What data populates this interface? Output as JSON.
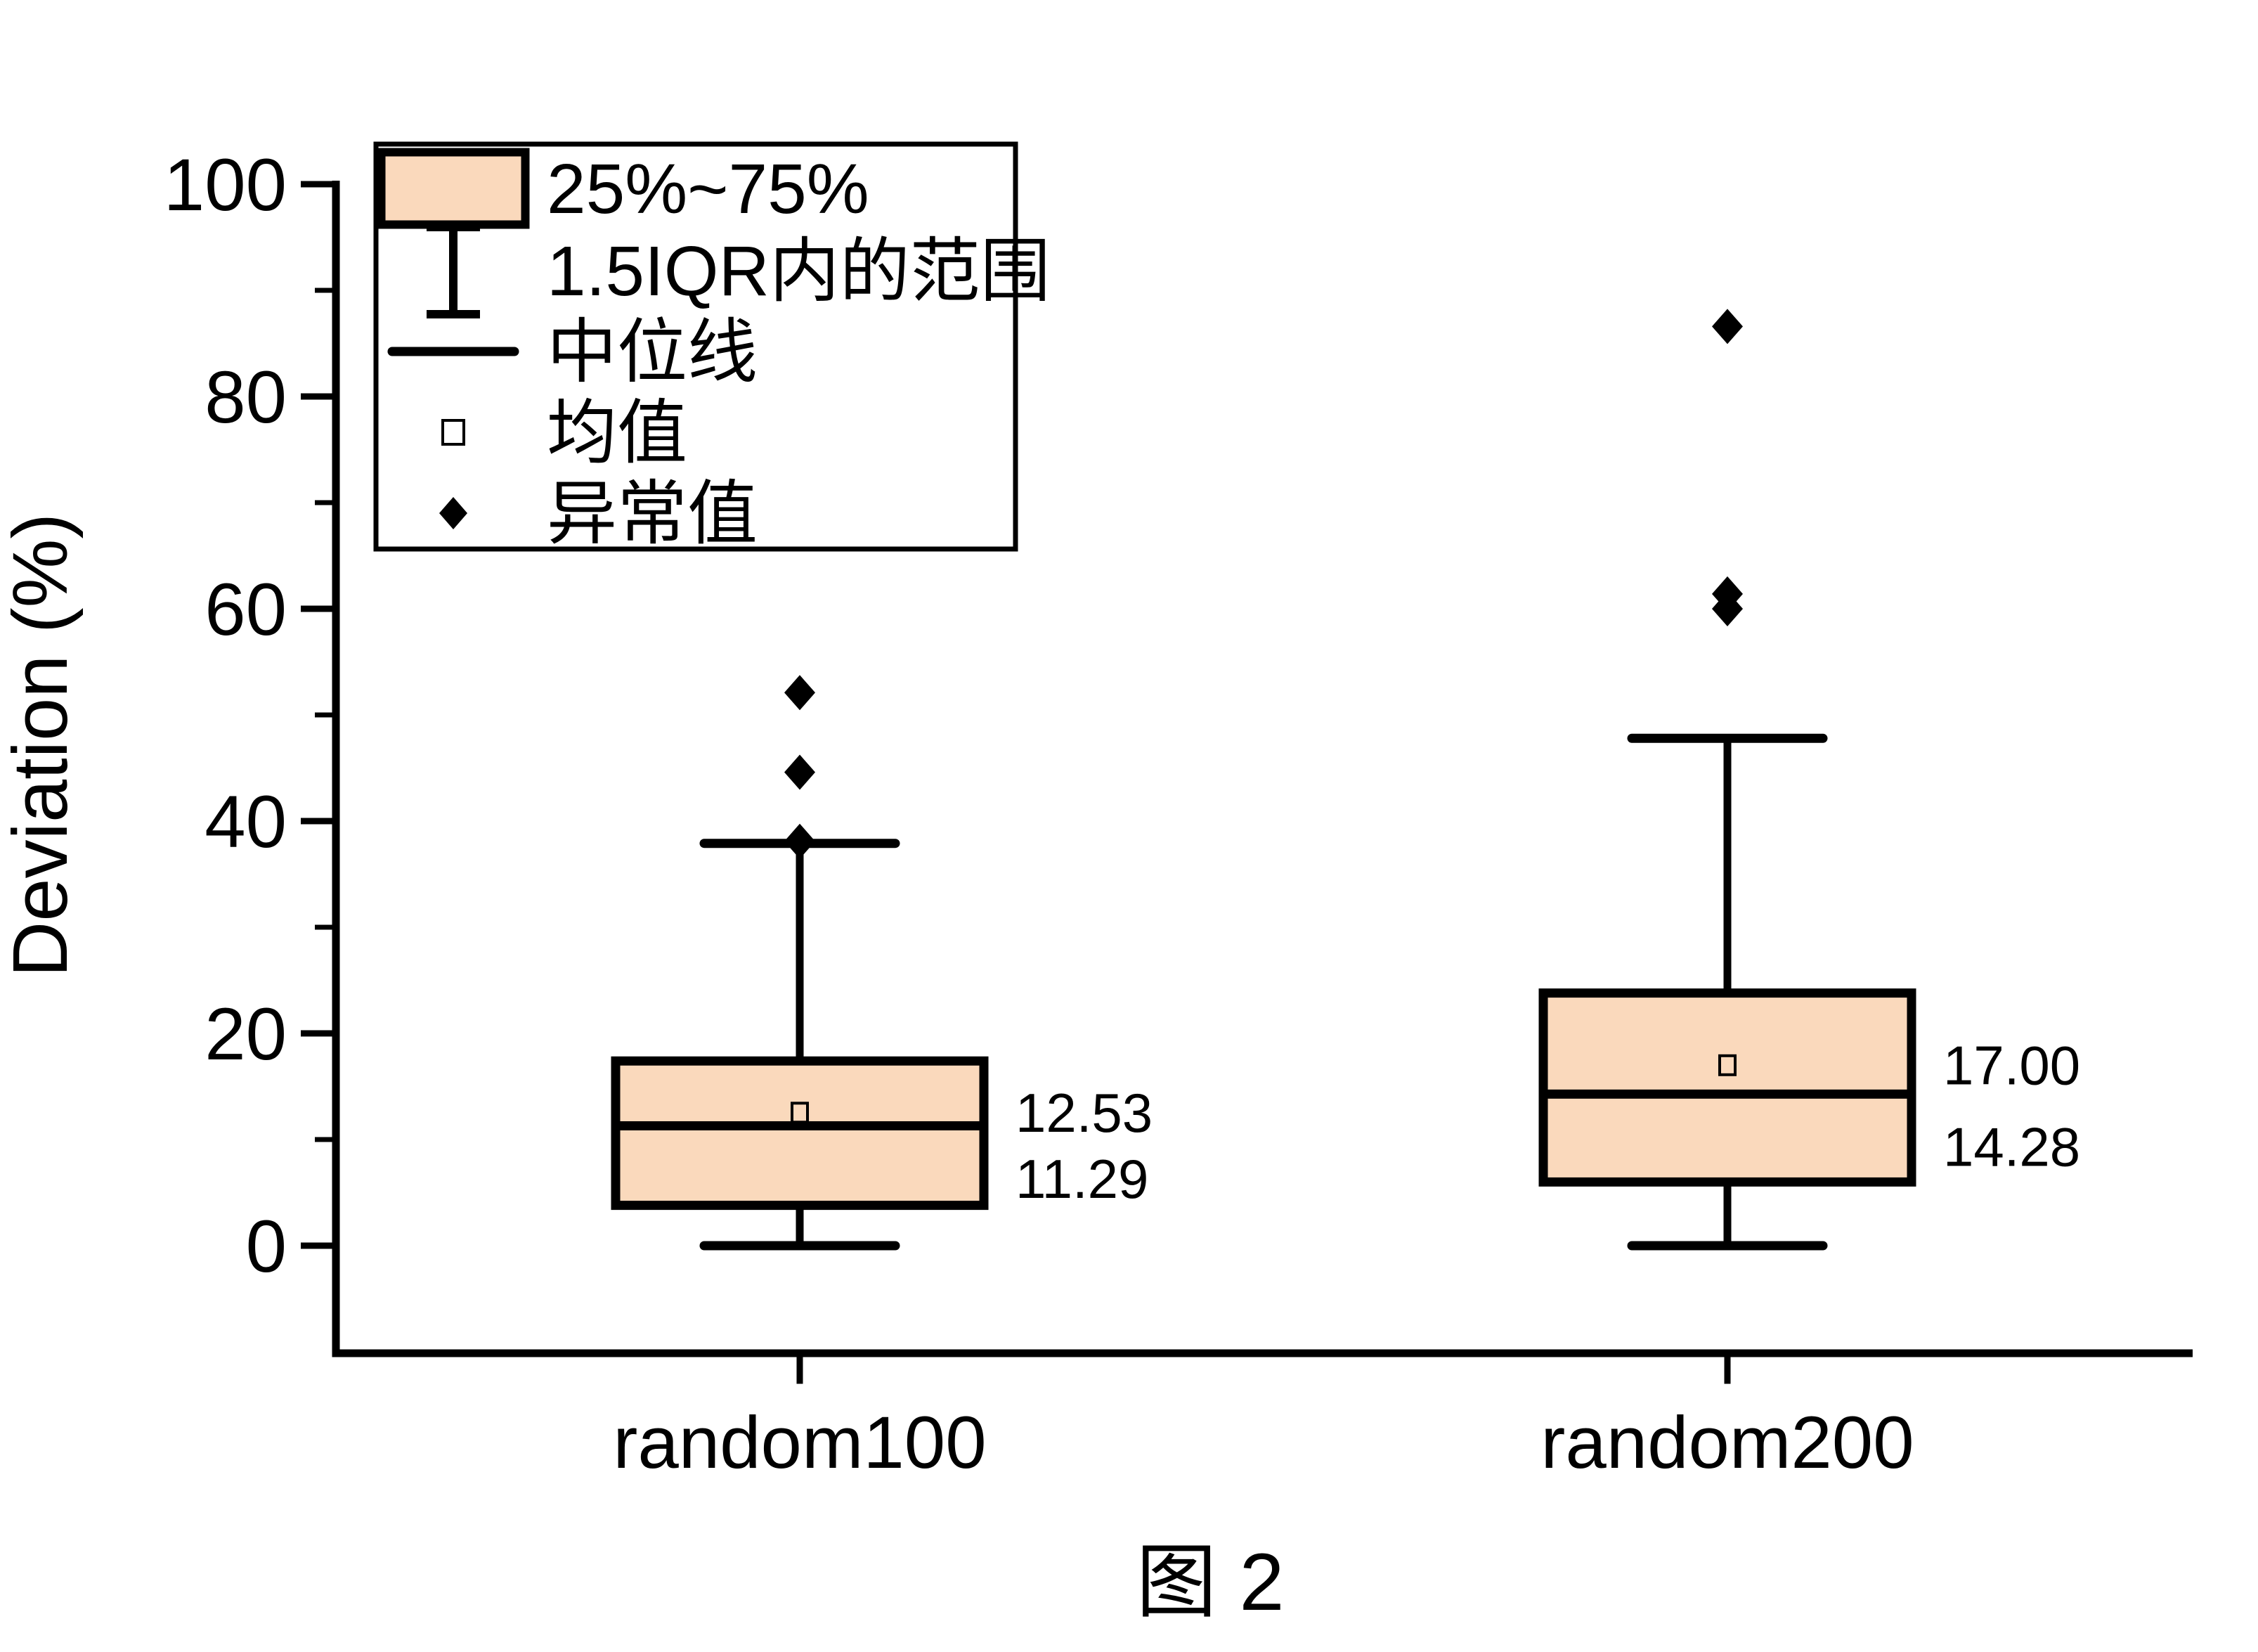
{
  "chart_data": {
    "type": "box",
    "title": "图 2",
    "ylabel": "Deviation (%)",
    "ylim": [
      -10,
      107
    ],
    "yticks_major": [
      0,
      20,
      40,
      60,
      80,
      100
    ],
    "yticks_minor": [
      10,
      30,
      50,
      70,
      90
    ],
    "grid": false,
    "legend_position": "top-left",
    "categories": [
      "random100",
      "random200"
    ],
    "series": [
      {
        "name": "random100",
        "q1": 3.8,
        "median": 11.29,
        "q3": 17.4,
        "whisker_low": 0,
        "whisker_high": 37.9,
        "mean": 12.53,
        "outliers": [
          52.1,
          44.6,
          38.1
        ],
        "mean_label": "12.53",
        "median_label": "11.29"
      },
      {
        "name": "random200",
        "q1": 6.0,
        "median": 14.28,
        "q3": 23.8,
        "whisker_low": 0,
        "whisker_high": 47.8,
        "mean": 17.0,
        "outliers": [
          86.6,
          61.4,
          60.0
        ],
        "mean_label": "17.00",
        "median_label": "14.28"
      }
    ],
    "legend": {
      "items": [
        {
          "glyph": "box-swatch",
          "label": "25%~75%"
        },
        {
          "glyph": "whisker-ibeam",
          "label": "1.5IQR内的范围"
        },
        {
          "glyph": "median-line",
          "label": "中位线"
        },
        {
          "glyph": "mean-square",
          "label": "均值"
        },
        {
          "glyph": "outlier-diamond",
          "label": "异常值"
        }
      ]
    },
    "colors": {
      "box_fill": "#FAD9BC",
      "line": "#000000",
      "background": "#FFFFFF"
    }
  }
}
